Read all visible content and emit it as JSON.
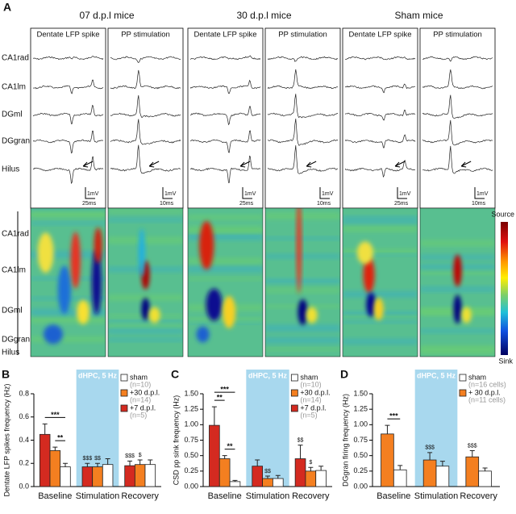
{
  "panel_a": {
    "letter": "A",
    "groups": [
      {
        "title": "07 d.p.l mice",
        "columns": [
          "Dentate LFP spike",
          "PP stimulation"
        ],
        "time_scales": [
          "25ms",
          "10ms"
        ]
      },
      {
        "title": "30 d.p.l mice",
        "columns": [
          "Dentate LFP spike",
          "PP stimulation"
        ],
        "time_scales": [
          "25ms",
          "10ms"
        ]
      },
      {
        "title": "Sham mice",
        "columns": [
          "Dentate LFP spike",
          "PP stimulation"
        ],
        "time_scales": [
          "25ms",
          "10ms"
        ]
      }
    ],
    "trace_layers": [
      "CA1rad",
      "CA1lm",
      "DGml",
      "DGgran",
      "Hilus"
    ],
    "voltage_scale": "1mV",
    "csd_layers": [
      "CA1rad",
      "CA1lm",
      "DGml",
      "DGgran",
      "Hilus"
    ],
    "colorbar": {
      "top": "Source",
      "bottom": "Sink"
    }
  },
  "chart_data": [
    {
      "type": "bar",
      "letter": "B",
      "y_label": "Dentate LFP spikes frequency (Hz)",
      "categories": [
        "Baseline",
        "Stimulation",
        "Recovery"
      ],
      "shaded": {
        "label": "dHPC, 5 Hz",
        "category": "Stimulation"
      },
      "ylim": [
        0,
        0.8
      ],
      "yticks": [
        {
          "value": 0,
          "label": "0.0"
        },
        0.2,
        0.4,
        0.6,
        0.8
      ],
      "series": [
        {
          "name": "+7 d.p.l.",
          "n_label": "(n=5)",
          "color": "#d42a20",
          "values": [
            0.45,
            0.17,
            0.18
          ],
          "errors": [
            0.09,
            0.03,
            0.04
          ],
          "signs": [
            null,
            "$$$",
            "$$$"
          ]
        },
        {
          "name": "+30 d.p.l.",
          "n_label": "(n=14)",
          "color": "#f47f20",
          "values": [
            0.31,
            0.17,
            0.19
          ],
          "errors": [
            0.03,
            0.03,
            0.04
          ],
          "signs": [
            null,
            "$$",
            "$"
          ]
        },
        {
          "name": "sham",
          "n_label": "(n=10)",
          "color": "#ffffff",
          "values": [
            0.17,
            0.19,
            0.19
          ],
          "errors": [
            0.03,
            0.05,
            0.04
          ],
          "signs": [
            null,
            null,
            null
          ]
        }
      ],
      "brackets": [
        {
          "text": "***",
          "category": "Baseline",
          "between": [
            "+7 d.p.l.",
            "sham"
          ]
        },
        {
          "text": "**",
          "category": "Baseline",
          "between": [
            "+30 d.p.l.",
            "sham"
          ]
        }
      ]
    },
    {
      "type": "bar",
      "letter": "C",
      "y_label": "CSD pp sink frequency (Hz)",
      "categories": [
        "Baseline",
        "Stimulation",
        "Recovery"
      ],
      "shaded": {
        "label": "dHPC, 5 Hz",
        "category": "Stimulation"
      },
      "ylim": [
        0,
        1.5
      ],
      "yticks": [
        {
          "value": 0,
          "label": "0.00"
        },
        0.25,
        {
          "value": 0.5,
          "label": "0.50"
        },
        0.75,
        {
          "value": 1,
          "label": "1.00"
        },
        1.25,
        {
          "value": 1.5,
          "label": "1.50"
        }
      ],
      "series": [
        {
          "name": "+7 d.p.l.",
          "n_label": "(n=5)",
          "color": "#d42a20",
          "values": [
            0.99,
            0.33,
            0.45
          ],
          "errors": [
            0.3,
            0.1,
            0.22
          ],
          "signs": [
            null,
            null,
            "$$"
          ]
        },
        {
          "name": "+30 d.p.l.",
          "n_label": "(n=14)",
          "color": "#f47f20",
          "values": [
            0.45,
            0.13,
            0.25
          ],
          "errors": [
            0.05,
            0.04,
            0.06
          ],
          "signs": [
            null,
            "$$",
            "$"
          ]
        },
        {
          "name": "sham",
          "n_label": "(n=10)",
          "color": "#ffffff",
          "values": [
            0.08,
            0.13,
            0.26
          ],
          "errors": [
            0.02,
            0.05,
            0.07
          ],
          "signs": [
            null,
            null,
            null
          ]
        }
      ],
      "brackets": [
        {
          "text": "**",
          "category": "Baseline",
          "between": [
            "+7 d.p.l.",
            "+30 d.p.l."
          ]
        },
        {
          "text": "***",
          "category": "Baseline",
          "between": [
            "+7 d.p.l.",
            "sham"
          ]
        },
        {
          "text": "**",
          "category": "Baseline",
          "between": [
            "+30 d.p.l.",
            "sham"
          ]
        }
      ]
    },
    {
      "type": "bar",
      "letter": "D",
      "y_label": "DGgran firing frequency (Hz)",
      "categories": [
        "Baseline",
        "Stimulation",
        "Recovery"
      ],
      "shaded": {
        "label": "dHPC, 5 Hz",
        "category": "Stimulation"
      },
      "ylim": [
        0,
        1.5
      ],
      "yticks": [
        {
          "value": 0,
          "label": "0.00"
        },
        0.25,
        {
          "value": 0.5,
          "label": "0.50"
        },
        0.75,
        {
          "value": 1,
          "label": "1.00"
        },
        1.25,
        {
          "value": 1.5,
          "label": "1.50"
        }
      ],
      "series": [
        {
          "name": "+ 30 d.p.l.",
          "n_label": "(n=11 cells)",
          "color": "#f47f20",
          "values": [
            0.85,
            0.43,
            0.48
          ],
          "errors": [
            0.14,
            0.12,
            0.1
          ],
          "signs": [
            null,
            "$$$",
            "$$$"
          ]
        },
        {
          "name": "sham",
          "n_label": "(n=16 cells)",
          "color": "#ffffff",
          "values": [
            0.27,
            0.33,
            0.25
          ],
          "errors": [
            0.07,
            0.08,
            0.05
          ],
          "signs": [
            null,
            null,
            null
          ]
        }
      ],
      "brackets": [
        {
          "text": "***",
          "category": "Baseline",
          "between": [
            "+ 30 d.p.l.",
            "sham"
          ]
        }
      ]
    }
  ]
}
